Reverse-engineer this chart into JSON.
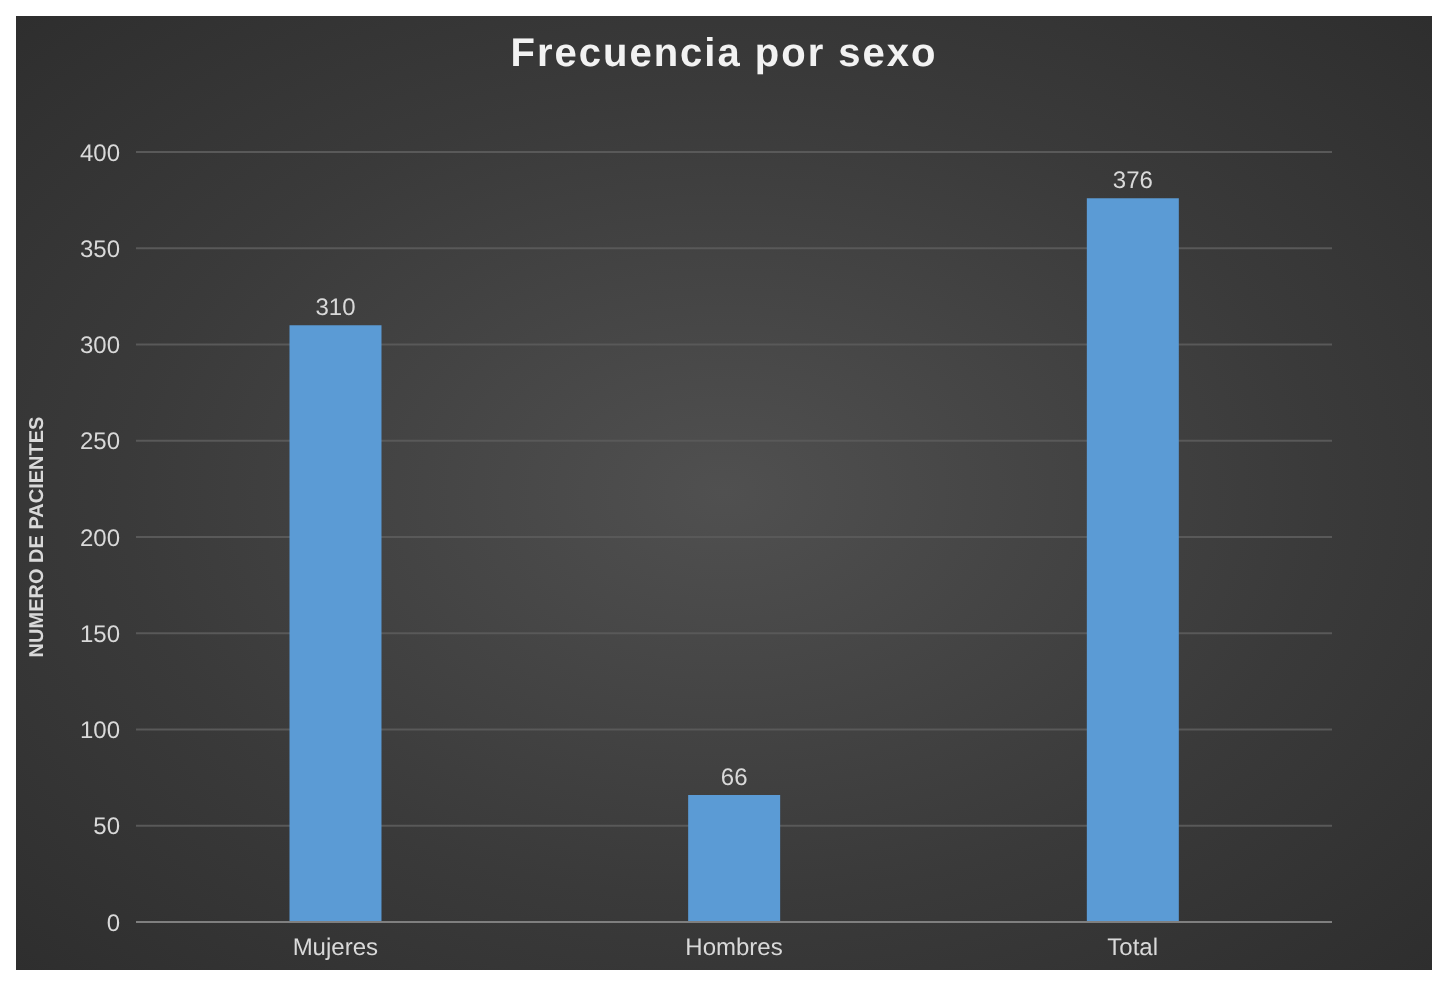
{
  "chart_data": {
    "type": "bar",
    "title": "Frecuencia por sexo",
    "ylabel": "NUMERO DE PACIENTES",
    "categories": [
      "Mujeres",
      "Hombres",
      "Total"
    ],
    "values": [
      310,
      66,
      376
    ],
    "color": "#5b9bd5",
    "ylim": [
      0,
      400
    ],
    "yticks": [
      0,
      50,
      100,
      150,
      200,
      250,
      300,
      350,
      400
    ],
    "grid": "y",
    "data_labels": true
  }
}
